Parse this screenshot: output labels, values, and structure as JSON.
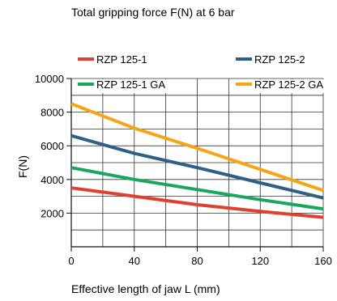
{
  "chart_data": {
    "type": "line",
    "title": "Total gripping force F(N) at 6 bar",
    "xlabel": "Effective length of jaw L (mm)",
    "ylabel": "F(N)",
    "xlim": [
      0,
      160
    ],
    "ylim": [
      0,
      10000
    ],
    "x_ticks": [
      0,
      40,
      80,
      120,
      160
    ],
    "x_minor_step": 20,
    "y_ticks": [
      2000,
      4000,
      6000,
      8000,
      10000
    ],
    "y_minor_step": 1000,
    "grid": true,
    "legend": "top",
    "series": [
      {
        "name": "RZP 125-1",
        "color": "#e0402f",
        "x": [
          0,
          40,
          80,
          120,
          160
        ],
        "y": [
          3500,
          3000,
          2500,
          2100,
          1750
        ]
      },
      {
        "name": "RZP 125-2",
        "color": "#2f5f86",
        "x": [
          0,
          40,
          80,
          120,
          160
        ],
        "y": [
          6600,
          5550,
          4700,
          3800,
          2900
        ]
      },
      {
        "name": "RZP 125-1 GA",
        "color": "#17a85c",
        "x": [
          0,
          40,
          80,
          120,
          160
        ],
        "y": [
          4700,
          4000,
          3400,
          2800,
          2250
        ]
      },
      {
        "name": "RZP 125-2 GA",
        "color": "#f5a615",
        "x": [
          0,
          40,
          80,
          120,
          160
        ],
        "y": [
          8500,
          7050,
          5850,
          4600,
          3350
        ]
      }
    ]
  }
}
